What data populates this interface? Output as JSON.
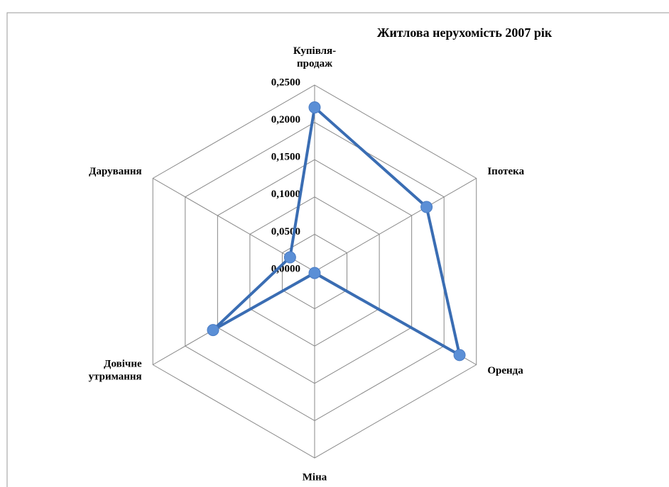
{
  "chart_data": {
    "type": "radar",
    "title": "Житлова нерухомість 2007 рік",
    "categories": [
      "Купівля-\nпродаж",
      "Іпотека",
      "Оренда",
      "Міна",
      "Довічне\nутримання",
      "Дарування"
    ],
    "series": [
      {
        "name": "2007",
        "color": "#3a6db3",
        "values": [
          0.22,
          0.173,
          0.224,
          0.002,
          0.157,
          0.038
        ]
      }
    ],
    "ylim": [
      0,
      0.25
    ],
    "yticks": [
      {
        "value": 0,
        "label": "0,0000"
      },
      {
        "value": 0.05,
        "label": "0,0500"
      },
      {
        "value": 0.1,
        "label": "0,1000"
      },
      {
        "value": 0.15,
        "label": "0,1500"
      },
      {
        "value": 0.2,
        "label": "0,2000"
      },
      {
        "value": 0.25,
        "label": "0,2500"
      }
    ],
    "grid": true
  }
}
